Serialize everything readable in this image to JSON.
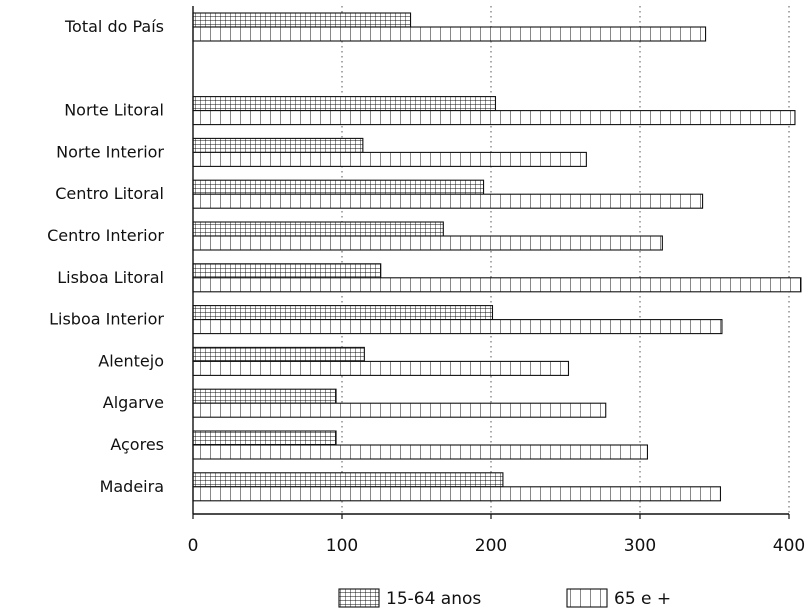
{
  "chart_data": {
    "type": "bar",
    "orientation": "horizontal",
    "categories": [
      "Total do País",
      "",
      "Norte Litoral",
      "Norte Interior",
      "Centro Litoral",
      "Centro Interior",
      "Lisboa Litoral",
      "Lisboa Interior",
      "Alentejo",
      "Algarve",
      "Açores",
      "Madeira"
    ],
    "series": [
      {
        "name": "15-64 anos",
        "pattern": "grid",
        "values": [
          146,
          null,
          203,
          114,
          195,
          168,
          126,
          201,
          115,
          96,
          96,
          208
        ]
      },
      {
        "name": "65 e +",
        "pattern": "vertical-lines",
        "values": [
          344,
          null,
          404,
          264,
          342,
          315,
          408,
          355,
          252,
          277,
          305,
          354
        ]
      }
    ],
    "xlim": [
      0,
      400
    ],
    "xticks": [
      "0",
      "100",
      "200",
      "300",
      "400"
    ],
    "xlabel": "",
    "ylabel": "",
    "grid": "vertical dotted",
    "legend_position": "bottom",
    "colors": {
      "ink": "#111111",
      "fill": "#ffffff",
      "grid": "#555555"
    }
  }
}
